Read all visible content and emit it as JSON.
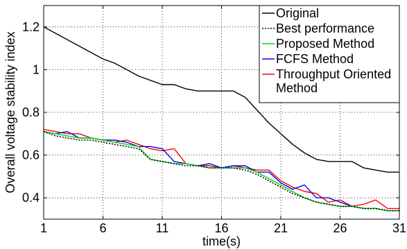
{
  "chart_data": {
    "type": "line",
    "title": "",
    "xlabel": "time(s)",
    "ylabel": "Overall voltage stability index",
    "xlim": [
      1,
      31
    ],
    "ylim": [
      0.3,
      1.3
    ],
    "xticks": [
      "1",
      "6",
      "11",
      "16",
      "21",
      "26",
      "31"
    ],
    "yticks": [
      "0.4",
      "0.6",
      "0.8",
      "1",
      "1.2"
    ],
    "grid": true,
    "legend_position": "top-right",
    "x": [
      1,
      2,
      3,
      4,
      5,
      6,
      7,
      8,
      9,
      10,
      11,
      12,
      13,
      14,
      15,
      16,
      17,
      18,
      19,
      20,
      21,
      22,
      23,
      24,
      25,
      26,
      27,
      28,
      29,
      30,
      31
    ],
    "series": [
      {
        "name": "Original",
        "color": "#000000",
        "style": "solid",
        "values": [
          1.2,
          1.17,
          1.14,
          1.11,
          1.08,
          1.05,
          1.03,
          1.0,
          0.97,
          0.95,
          0.93,
          0.93,
          0.91,
          0.9,
          0.9,
          0.9,
          0.9,
          0.87,
          0.81,
          0.75,
          0.7,
          0.65,
          0.61,
          0.58,
          0.57,
          0.57,
          0.57,
          0.54,
          0.53,
          0.52,
          0.52
        ]
      },
      {
        "name": "Best performance",
        "color": "#000000",
        "style": "dotted",
        "values": [
          0.71,
          0.69,
          0.68,
          0.67,
          0.67,
          0.66,
          0.65,
          0.64,
          0.63,
          0.58,
          0.57,
          0.56,
          0.55,
          0.55,
          0.54,
          0.54,
          0.54,
          0.53,
          0.51,
          0.48,
          0.45,
          0.42,
          0.4,
          0.38,
          0.37,
          0.36,
          0.36,
          0.35,
          0.35,
          0.34,
          0.34
        ]
      },
      {
        "name": "Proposed Method",
        "color": "#00dd00",
        "style": "solid",
        "values": [
          0.71,
          0.7,
          0.69,
          0.68,
          0.68,
          0.67,
          0.66,
          0.65,
          0.64,
          0.58,
          0.57,
          0.56,
          0.56,
          0.55,
          0.54,
          0.54,
          0.54,
          0.54,
          0.52,
          0.49,
          0.46,
          0.43,
          0.4,
          0.38,
          0.37,
          0.36,
          0.36,
          0.35,
          0.35,
          0.34,
          0.34
        ]
      },
      {
        "name": "FCFS Method",
        "color": "#0000ff",
        "style": "solid",
        "values": [
          0.71,
          0.7,
          0.71,
          0.68,
          0.68,
          0.67,
          0.67,
          0.66,
          0.64,
          0.64,
          0.63,
          0.57,
          0.56,
          0.55,
          0.56,
          0.54,
          0.55,
          0.55,
          0.52,
          0.52,
          0.47,
          0.44,
          0.46,
          0.4,
          0.4,
          0.38,
          0.36,
          0.35,
          0.35,
          0.34,
          0.34
        ]
      },
      {
        "name": "Throughput Oriented Method",
        "color": "#ff0000",
        "style": "solid",
        "values": [
          0.72,
          0.71,
          0.7,
          0.7,
          0.68,
          0.67,
          0.66,
          0.67,
          0.65,
          0.63,
          0.62,
          0.63,
          0.56,
          0.55,
          0.55,
          0.54,
          0.55,
          0.54,
          0.53,
          0.53,
          0.48,
          0.45,
          0.43,
          0.42,
          0.38,
          0.39,
          0.36,
          0.37,
          0.39,
          0.35,
          0.35
        ]
      }
    ],
    "legend": [
      {
        "lines": [
          "Original"
        ],
        "series": 0
      },
      {
        "lines": [
          "Best performance"
        ],
        "series": 1
      },
      {
        "lines": [
          "Proposed Method"
        ],
        "series": 2
      },
      {
        "lines": [
          "FCFS Method"
        ],
        "series": 3
      },
      {
        "lines": [
          "Throughput Oriented",
          "Method"
        ],
        "series": 4
      }
    ]
  }
}
